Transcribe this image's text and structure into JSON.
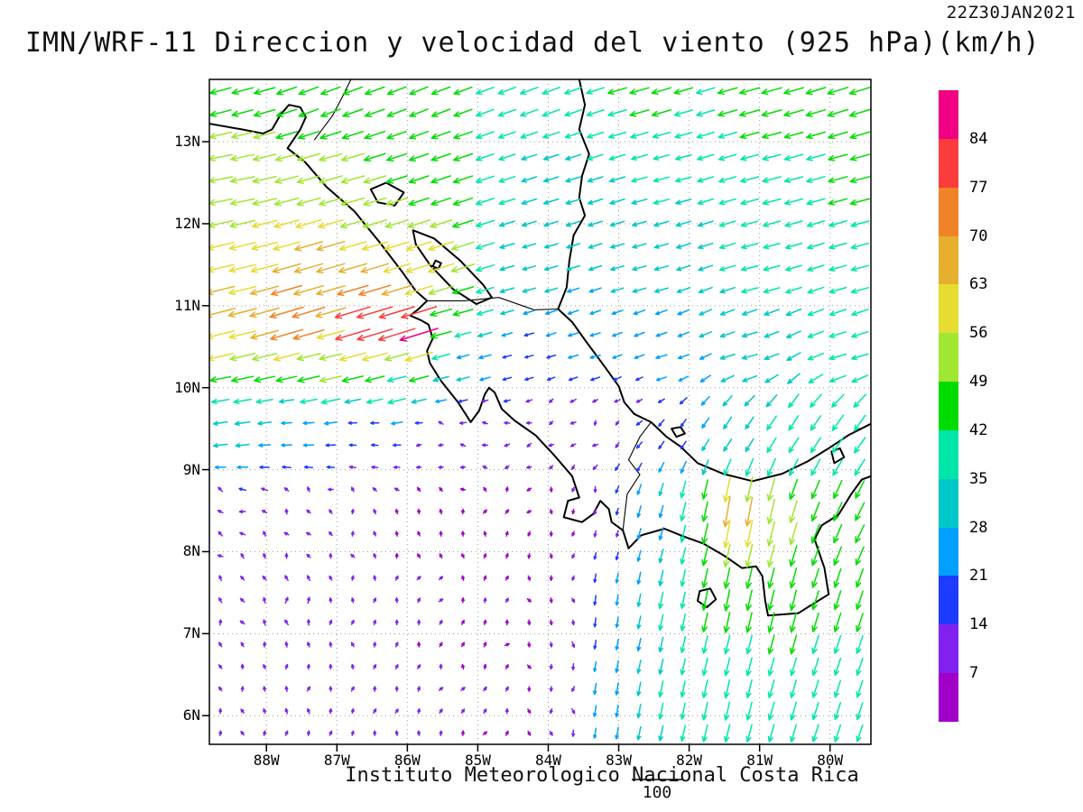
{
  "header": {
    "timestamp": "22Z30JAN2021",
    "title": "IMN/WRF-11 Direccion y velocidad del viento (925 hPa)(km/h)"
  },
  "footer": {
    "institution": "Instituto Meteorologico Nacional Costa Rica",
    "reference_value": "100"
  },
  "axes": {
    "lat_ticks": [
      "13N",
      "12N",
      "11N",
      "10N",
      "9N",
      "8N",
      "7N",
      "6N"
    ],
    "lat_values": [
      13,
      12,
      11,
      10,
      9,
      8,
      7,
      6
    ],
    "lon_ticks": [
      "88W",
      "87W",
      "86W",
      "85W",
      "84W",
      "83W",
      "82W",
      "81W",
      "80W"
    ],
    "lon_values": [
      -88,
      -87,
      -86,
      -85,
      -84,
      -83,
      -82,
      -81,
      -80
    ],
    "lon_min": -88.81,
    "lon_max": -79.42,
    "lat_min": 5.65,
    "lat_max": 13.76,
    "grid": "dotted"
  },
  "colorbar": {
    "units": "km/h",
    "levels": [
      7,
      14,
      21,
      28,
      35,
      42,
      49,
      56,
      63,
      70,
      77,
      84
    ],
    "colors": [
      "#A000C8",
      "#8220F0",
      "#1E3CFF",
      "#00A0FF",
      "#00C8C8",
      "#00E6AA",
      "#00DC00",
      "#A0E632",
      "#E6DC32",
      "#E6AF2D",
      "#F08228",
      "#FA3C3C",
      "#F00082"
    ]
  },
  "chart_data": {
    "type": "vector_field",
    "title": "IMN/WRF-11 Direccion y velocidad del viento (925 hPa)(km/h)",
    "valid_time": "22Z30JAN2021",
    "units": "km/h",
    "level_hPa": 925,
    "legend_levels": [
      7,
      14,
      21,
      28,
      35,
      42,
      49,
      56,
      63,
      70,
      77,
      84
    ],
    "reference_vector": 100,
    "lon_range": [
      -88.81,
      -79.42
    ],
    "lat_range": [
      5.65,
      13.76
    ],
    "wind_samples_format": "[lon, lat, u_kmh, v_kmh]",
    "wind_samples": [
      [
        -88.6,
        13.6,
        -46,
        -12
      ],
      [
        -87.2,
        13.6,
        -42,
        -16
      ],
      [
        -85.8,
        13.6,
        -40,
        -16
      ],
      [
        -84.2,
        13.6,
        -38,
        -14
      ],
      [
        -82.6,
        13.6,
        -42,
        -12
      ],
      [
        -81.0,
        13.6,
        -44,
        -12
      ],
      [
        -79.6,
        13.6,
        -45,
        -14
      ],
      [
        -88.6,
        12.5,
        -52,
        -10
      ],
      [
        -87.0,
        12.5,
        -50,
        -14
      ],
      [
        -85.5,
        12.5,
        -42,
        -14
      ],
      [
        -84.0,
        12.5,
        -32,
        -10
      ],
      [
        -82.4,
        12.5,
        -34,
        -9
      ],
      [
        -80.8,
        12.5,
        -40,
        -10
      ],
      [
        -79.6,
        12.5,
        -42,
        -11
      ],
      [
        -88.6,
        11.5,
        -58,
        -14
      ],
      [
        -87.2,
        11.5,
        -62,
        -18
      ],
      [
        -85.6,
        11.5,
        -56,
        -18
      ],
      [
        -84.2,
        11.5,
        -28,
        -8
      ],
      [
        -82.6,
        11.5,
        -30,
        -8
      ],
      [
        -81.0,
        11.5,
        -36,
        -9
      ],
      [
        -79.6,
        11.5,
        -38,
        -10
      ],
      [
        -88.7,
        10.9,
        -66,
        -17
      ],
      [
        -87.6,
        10.85,
        -74,
        -22
      ],
      [
        -86.6,
        10.8,
        -80,
        -24
      ],
      [
        -85.95,
        10.72,
        -86,
        -27
      ],
      [
        -85.4,
        10.75,
        -45,
        -12
      ],
      [
        -88.6,
        10.35,
        -56,
        -13
      ],
      [
        -87.2,
        10.2,
        -48,
        -11
      ],
      [
        -86.2,
        10.1,
        -40,
        -10
      ],
      [
        -85.2,
        10.45,
        -26,
        -7
      ],
      [
        -84.4,
        10.35,
        -18,
        -5
      ],
      [
        -83.4,
        10.4,
        -22,
        -6
      ],
      [
        -82.4,
        10.3,
        -24,
        -7
      ],
      [
        -81.2,
        10.4,
        -33,
        -9
      ],
      [
        -79.8,
        10.4,
        -37,
        -10
      ],
      [
        -88.7,
        9.9,
        -38,
        -6
      ],
      [
        -88.7,
        9.55,
        -30,
        -4
      ],
      [
        -87.6,
        9.45,
        -22,
        -1
      ],
      [
        -86.6,
        9.35,
        -14,
        1
      ],
      [
        -85.6,
        9.35,
        -9,
        2
      ],
      [
        -84.8,
        9.6,
        -11,
        -2
      ],
      [
        -84.0,
        9.6,
        -9,
        -4
      ],
      [
        -83.2,
        9.6,
        -7,
        -7
      ],
      [
        -82.6,
        9.9,
        -12,
        -6
      ],
      [
        -82.2,
        9.45,
        -11,
        -16
      ],
      [
        -81.4,
        9.45,
        -17,
        -26
      ],
      [
        -80.5,
        9.45,
        -21,
        -32
      ],
      [
        -79.7,
        9.45,
        -24,
        -34
      ],
      [
        -88.7,
        8.5,
        -10,
        6
      ],
      [
        -87.6,
        8.5,
        -5,
        9
      ],
      [
        -86.6,
        8.5,
        -1,
        8
      ],
      [
        -85.6,
        8.5,
        1,
        6
      ],
      [
        -84.7,
        8.5,
        2,
        5
      ],
      [
        -83.8,
        8.4,
        1,
        -4
      ],
      [
        -83.1,
        8.3,
        -3,
        -13
      ],
      [
        -82.5,
        8.4,
        -7,
        -26
      ],
      [
        -81.9,
        8.5,
        -9,
        -42
      ],
      [
        -81.35,
        8.45,
        -11,
        -68
      ],
      [
        -80.8,
        8.4,
        -13,
        -54
      ],
      [
        -80.15,
        8.4,
        -16,
        -41
      ],
      [
        -79.6,
        8.4,
        -19,
        -39
      ],
      [
        -88.7,
        7.4,
        -4,
        11
      ],
      [
        -87.6,
        7.4,
        -1,
        13
      ],
      [
        -86.6,
        7.4,
        2,
        10
      ],
      [
        -85.6,
        7.4,
        4,
        8
      ],
      [
        -84.7,
        7.4,
        4,
        7
      ],
      [
        -83.9,
        7.4,
        2,
        -6
      ],
      [
        -83.1,
        7.4,
        -3,
        -22
      ],
      [
        -82.3,
        7.4,
        -7,
        -36
      ],
      [
        -81.5,
        7.4,
        -9,
        -46
      ],
      [
        -80.7,
        7.4,
        -11,
        -44
      ],
      [
        -79.9,
        7.4,
        -13,
        -41
      ],
      [
        -88.7,
        6.2,
        -1,
        9
      ],
      [
        -87.6,
        6.2,
        1,
        11
      ],
      [
        -86.6,
        6.2,
        3,
        10
      ],
      [
        -85.6,
        6.2,
        3,
        8
      ],
      [
        -84.7,
        6.2,
        4,
        9
      ],
      [
        -83.9,
        6.2,
        1,
        -10
      ],
      [
        -83.1,
        6.2,
        -4,
        -26
      ],
      [
        -82.3,
        6.2,
        -7,
        -35
      ],
      [
        -81.5,
        6.2,
        -9,
        -40
      ],
      [
        -80.7,
        6.2,
        -11,
        -39
      ],
      [
        -79.9,
        6.2,
        -12,
        -37
      ]
    ]
  },
  "map": {
    "coastlines": [
      [
        [
          -88.81,
          13.22
        ],
        [
          -88.35,
          13.15
        ],
        [
          -88.05,
          13.1
        ],
        [
          -87.92,
          13.15
        ],
        [
          -87.8,
          13.33
        ],
        [
          -87.68,
          13.45
        ],
        [
          -87.52,
          13.42
        ],
        [
          -87.44,
          13.3
        ],
        [
          -87.52,
          13.15
        ],
        [
          -87.62,
          13.02
        ],
        [
          -87.7,
          12.92
        ],
        [
          -87.45,
          12.75
        ],
        [
          -87.15,
          12.45
        ],
        [
          -86.75,
          12.15
        ],
        [
          -86.4,
          11.78
        ],
        [
          -86.08,
          11.42
        ],
        [
          -85.88,
          11.18
        ],
        [
          -85.72,
          11.06
        ],
        [
          -85.84,
          10.96
        ],
        [
          -85.96,
          10.88
        ],
        [
          -85.8,
          10.82
        ],
        [
          -85.7,
          10.77
        ],
        [
          -85.64,
          10.6
        ],
        [
          -85.72,
          10.45
        ],
        [
          -85.68,
          10.3
        ],
        [
          -85.52,
          10.08
        ],
        [
          -85.28,
          9.82
        ],
        [
          -85.1,
          9.58
        ],
        [
          -84.98,
          9.72
        ],
        [
          -84.9,
          9.92
        ],
        [
          -84.84,
          10.0
        ],
        [
          -84.76,
          9.94
        ],
        [
          -84.66,
          9.74
        ],
        [
          -84.48,
          9.6
        ],
        [
          -84.18,
          9.42
        ],
        [
          -83.92,
          9.18
        ],
        [
          -83.66,
          8.92
        ],
        [
          -83.56,
          8.66
        ],
        [
          -83.72,
          8.62
        ],
        [
          -83.78,
          8.42
        ],
        [
          -83.52,
          8.36
        ],
        [
          -83.36,
          8.46
        ],
        [
          -83.26,
          8.62
        ],
        [
          -83.14,
          8.52
        ],
        [
          -83.1,
          8.36
        ],
        [
          -82.94,
          8.26
        ],
        [
          -82.86,
          8.04
        ],
        [
          -82.68,
          8.2
        ],
        [
          -82.35,
          8.28
        ],
        [
          -82.12,
          8.2
        ],
        [
          -81.8,
          8.1
        ],
        [
          -81.5,
          7.95
        ],
        [
          -81.25,
          7.8
        ],
        [
          -81.05,
          7.82
        ],
        [
          -80.96,
          7.7
        ],
        [
          -80.92,
          7.4
        ],
        [
          -80.88,
          7.22
        ],
        [
          -80.45,
          7.25
        ],
        [
          -80.02,
          7.48
        ],
        [
          -80.08,
          7.8
        ],
        [
          -80.22,
          8.15
        ],
        [
          -80.12,
          8.32
        ],
        [
          -79.88,
          8.45
        ],
        [
          -79.7,
          8.7
        ],
        [
          -79.55,
          8.88
        ],
        [
          -79.42,
          8.92
        ]
      ],
      [
        [
          -83.56,
          13.76
        ],
        [
          -83.48,
          13.45
        ],
        [
          -83.56,
          13.15
        ],
        [
          -83.42,
          12.85
        ],
        [
          -83.52,
          12.58
        ],
        [
          -83.56,
          12.32
        ],
        [
          -83.48,
          12.1
        ],
        [
          -83.64,
          11.86
        ],
        [
          -83.7,
          11.55
        ],
        [
          -83.74,
          11.22
        ],
        [
          -83.86,
          10.96
        ],
        [
          -83.66,
          10.8
        ],
        [
          -83.46,
          10.56
        ],
        [
          -83.22,
          10.28
        ],
        [
          -83.0,
          10.02
        ],
        [
          -82.92,
          9.82
        ],
        [
          -82.78,
          9.68
        ],
        [
          -82.54,
          9.58
        ],
        [
          -82.32,
          9.4
        ],
        [
          -82.12,
          9.28
        ],
        [
          -81.88,
          9.08
        ],
        [
          -81.52,
          8.95
        ],
        [
          -81.1,
          8.86
        ],
        [
          -80.68,
          8.95
        ],
        [
          -80.32,
          9.1
        ],
        [
          -80.02,
          9.26
        ],
        [
          -79.74,
          9.42
        ],
        [
          -79.42,
          9.56
        ]
      ]
    ],
    "lakes": [
      [
        [
          -85.92,
          11.92
        ],
        [
          -85.62,
          11.82
        ],
        [
          -85.25,
          11.55
        ],
        [
          -84.92,
          11.25
        ],
        [
          -84.8,
          11.1
        ],
        [
          -85.02,
          11.02
        ],
        [
          -85.35,
          11.2
        ],
        [
          -85.68,
          11.5
        ],
        [
          -85.88,
          11.75
        ]
      ],
      [
        [
          -85.6,
          11.55
        ],
        [
          -85.52,
          11.52
        ],
        [
          -85.56,
          11.45
        ],
        [
          -85.64,
          11.48
        ]
      ],
      [
        [
          -86.52,
          12.42
        ],
        [
          -86.3,
          12.5
        ],
        [
          -86.05,
          12.38
        ],
        [
          -86.18,
          12.22
        ],
        [
          -86.42,
          12.26
        ]
      ],
      [
        [
          -81.85,
          7.52
        ],
        [
          -81.7,
          7.55
        ],
        [
          -81.62,
          7.42
        ],
        [
          -81.75,
          7.32
        ],
        [
          -81.88,
          7.4
        ]
      ],
      [
        [
          -82.25,
          9.5
        ],
        [
          -82.12,
          9.52
        ],
        [
          -82.06,
          9.44
        ],
        [
          -82.18,
          9.4
        ]
      ],
      [
        [
          -79.98,
          9.22
        ],
        [
          -79.86,
          9.26
        ],
        [
          -79.8,
          9.15
        ],
        [
          -79.94,
          9.08
        ]
      ]
    ],
    "borders": [
      [
        [
          -87.32,
          13.02
        ],
        [
          -87.06,
          13.32
        ],
        [
          -86.92,
          13.55
        ],
        [
          -86.8,
          13.76
        ]
      ],
      [
        [
          -85.72,
          11.06
        ],
        [
          -85.2,
          11.06
        ],
        [
          -84.7,
          11.1
        ],
        [
          -84.2,
          10.95
        ],
        [
          -83.86,
          10.96
        ]
      ],
      [
        [
          -82.94,
          8.26
        ],
        [
          -82.88,
          8.7
        ],
        [
          -82.7,
          8.94
        ],
        [
          -82.86,
          9.12
        ],
        [
          -82.7,
          9.4
        ],
        [
          -82.54,
          9.58
        ]
      ]
    ]
  }
}
